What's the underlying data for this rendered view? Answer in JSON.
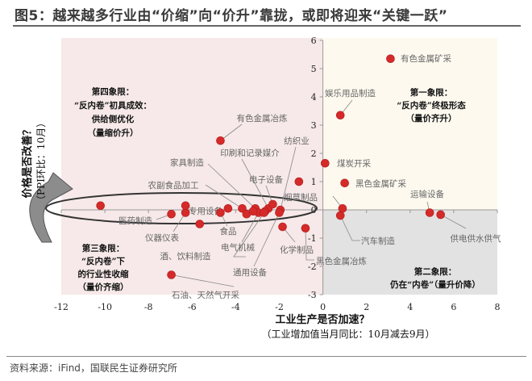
{
  "title": "图5：越来越多行业由“价缩”向“价升”靠拢，或即将迎来“关键一跃”",
  "source": "资料来源：iFind，国联民生证券研究所",
  "colors": {
    "dot": "#d42a2a",
    "q_left": "#f7e9e9",
    "q_top_right": "#fdf9ef",
    "q_bottom_right": "#e2e2e2"
  },
  "chart_data": {
    "type": "scatter",
    "xlabel": "工业生产是否加速？",
    "xlabel_sub": "（工业增加值当月同比：10月减去9月）",
    "ylabel": "价格是否改善？",
    "ylabel_sub": "（PPI环比：10月）",
    "xlim": [
      -12,
      8
    ],
    "ylim": [
      -3,
      6
    ],
    "xticks": [
      "-12",
      "-10",
      "-8",
      "-6",
      "-4",
      "-2",
      "0",
      "2",
      "4",
      "6",
      "8"
    ],
    "yticks": [
      "-3",
      "-2",
      "-1",
      "0",
      "1",
      "2",
      "3",
      "4",
      "5",
      "6"
    ],
    "quadrants": {
      "q1": [
        "第一象限：",
        "“反内卷”终极形态",
        "（量价齐升）"
      ],
      "q2": [
        "第二象限：",
        "仍在“内卷”（量升价降）"
      ],
      "q3": [
        "第三象限：",
        "“反内卷”下",
        "的行业性收缩",
        "（量价齐缩）"
      ],
      "q4": [
        "第四象限：",
        "“反内卷”初具成效：",
        "供给侧优化",
        "（量缩价升）"
      ]
    },
    "points": [
      {
        "name": "有色金属矿采",
        "x": 3.1,
        "y": 5.35
      },
      {
        "name": "娱乐用品制造",
        "x": 0.8,
        "y": 3.35
      },
      {
        "name": "煤炭开采",
        "x": 0.1,
        "y": 1.65
      },
      {
        "name": "黑色金属矿采",
        "x": 1.0,
        "y": 0.95
      },
      {
        "name": "运输设备",
        "x": 4.9,
        "y": -0.1
      },
      {
        "name": "供电供水供气",
        "x": 5.4,
        "y": -0.17
      },
      {
        "name": "烟草制品",
        "x": 0.9,
        "y": 0.05
      },
      {
        "name": "汽车制造",
        "x": 0.8,
        "y": -0.2
      },
      {
        "name": "黑色金属冶炼",
        "x": -0.8,
        "y": -0.65
      },
      {
        "name": "化学制品",
        "x": -1.85,
        "y": -0.6
      },
      {
        "name": "纺织业",
        "x": -1.95,
        "y": 0.0
      },
      {
        "name": "有色金属冶炼",
        "x": -4.7,
        "y": 2.45
      },
      {
        "name": "印刷和记录媒介",
        "x": -2.5,
        "y": 0.05
      },
      {
        "name": "家具制造",
        "x": -3.1,
        "y": 0.05
      },
      {
        "name": "电子设备",
        "x": -2.3,
        "y": 0.2
      },
      {
        "name": "农副食品加工",
        "x": -3.7,
        "y": 0.05
      },
      {
        "name": "专用设备",
        "x": -4.35,
        "y": 0.05
      },
      {
        "name": "医药制造",
        "x": -6.95,
        "y": -0.15
      },
      {
        "name": "仪器仪表",
        "x": -6.3,
        "y": -0.1
      },
      {
        "name": "食品",
        "x": -4.7,
        "y": -0.1
      },
      {
        "name": "电气机械",
        "x": -2.95,
        "y": -0.1
      },
      {
        "name": "酒、饮料制造",
        "x": -2.65,
        "y": -0.05
      },
      {
        "name": "通用设备",
        "x": -2.0,
        "y": -0.1
      },
      {
        "name": "石油、天然气开采",
        "x": -6.95,
        "y": -2.3
      },
      {
        "name": "",
        "x": -10.2,
        "y": 0.15
      },
      {
        "name": "",
        "x": -6.3,
        "y": 0.15
      },
      {
        "name": "",
        "x": -5.65,
        "y": -0.5
      },
      {
        "name": "",
        "x": -3.5,
        "y": -0.15
      },
      {
        "name": "",
        "x": -3.2,
        "y": -0.05
      },
      {
        "name": "",
        "x": -2.7,
        "y": -0.1
      },
      {
        "name": "",
        "x": -1.1,
        "y": 1.0
      }
    ]
  }
}
